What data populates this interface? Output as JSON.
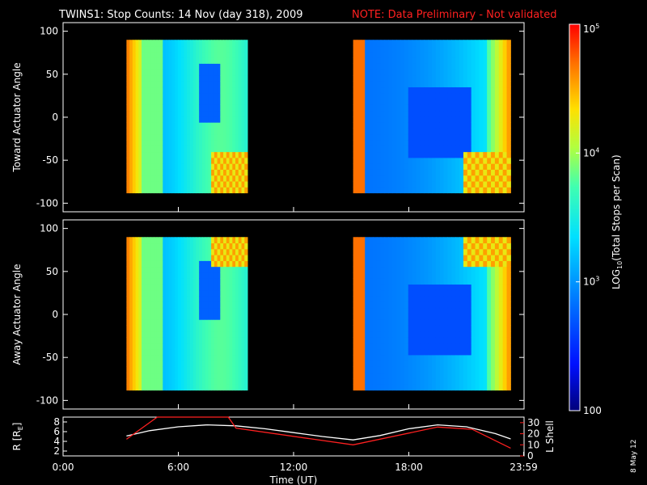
{
  "title": "TWINS1: Stop Counts: 14 Nov (day 318), 2009",
  "note": "NOTE: Data Preliminary - Not validated",
  "date_stamp": "8 May 12",
  "colors": {
    "background": "#000000",
    "axes": "#ffffff",
    "note": "#ff2020",
    "rE_line": "#ffffff",
    "lshell_line": "#ff2020"
  },
  "chart_data": [
    {
      "type": "heatmap",
      "panel": "toward",
      "ylabel": "Toward Actuator Angle",
      "ylim": [
        -110,
        110
      ],
      "yticks": [
        100,
        50,
        0,
        -50,
        -100
      ],
      "xlim_hours": [
        0,
        24
      ],
      "data_blocks_hours": [
        [
          3.3,
          9.6
        ],
        [
          15.1,
          23.3
        ]
      ],
      "data_angle_range": [
        -88,
        90
      ],
      "colormap": "rainbow: blue (low) to red (high)"
    },
    {
      "type": "heatmap",
      "panel": "away",
      "ylabel": "Away Actuator Angle",
      "ylim": [
        -110,
        110
      ],
      "yticks": [
        100,
        50,
        0,
        -50,
        -100
      ],
      "xlim_hours": [
        0,
        24
      ],
      "data_blocks_hours": [
        [
          3.3,
          9.6
        ],
        [
          15.1,
          23.3
        ]
      ],
      "data_angle_range": [
        -88,
        90
      ],
      "colormap": "rainbow: blue (low) to red (high)"
    },
    {
      "type": "line",
      "panel": "orbit",
      "xlabel": "Time (UT)",
      "xticks": [
        "0:00",
        "6:00",
        "12:00",
        "18:00",
        "23:59"
      ],
      "xtick_hours": [
        0,
        6,
        12,
        18,
        23.98
      ],
      "ylabel_left": "R [R",
      "ylabel_left_sub": "E",
      "ylabel_left_tail": "]",
      "ylim_left": [
        1,
        9
      ],
      "yticks_left": [
        2,
        4,
        6,
        8
      ],
      "ylabel_right": "L Shell",
      "ylim_right": [
        0,
        35
      ],
      "yticks_right": [
        0,
        10,
        20,
        30
      ],
      "series": [
        {
          "axis": "left",
          "x_hours": [
            3.3,
            4.5,
            6.0,
            7.5,
            9.0,
            10.5,
            12.0,
            13.5,
            15.1,
            16.5,
            18.0,
            19.5,
            21.0,
            22.5,
            23.3
          ],
          "values": [
            5.1,
            6.2,
            7.0,
            7.4,
            7.2,
            6.6,
            5.8,
            5.0,
            4.3,
            5.2,
            6.6,
            7.4,
            7.0,
            5.6,
            4.5
          ]
        },
        {
          "axis": "right",
          "x_hours": [
            3.3,
            4.9,
            5.0,
            8.6,
            9.0,
            15.1,
            19.5,
            21.3,
            23.3
          ],
          "values": [
            15,
            35,
            35,
            35,
            25,
            10,
            26,
            24,
            7
          ]
        }
      ]
    }
  ],
  "colorbar": {
    "label": "LOG",
    "label_sub": "10",
    "label_tail": "(Total Stops per Scan)",
    "range": [
      100,
      100000
    ],
    "ticks": [
      {
        "base": "10",
        "exp": "5",
        "value": 100000
      },
      {
        "base": "10",
        "exp": "4",
        "value": 10000
      },
      {
        "base": "10",
        "exp": "3",
        "value": 1000
      },
      {
        "base": "100",
        "exp": "",
        "value": 100
      }
    ]
  }
}
